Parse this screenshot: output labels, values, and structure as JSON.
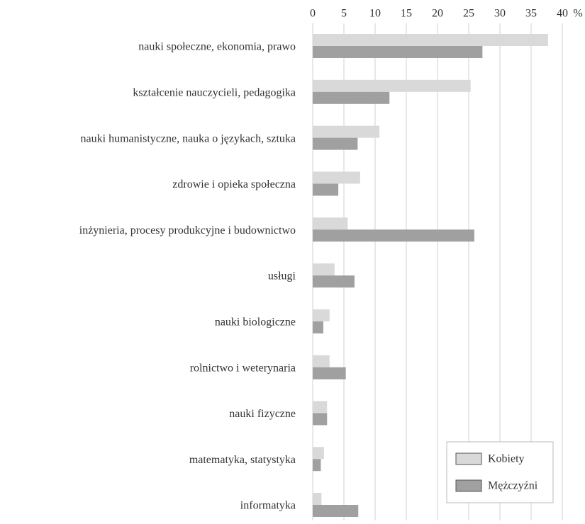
{
  "chart_data": {
    "type": "hbar",
    "x_unit": "%",
    "categories": [
      "nauki społeczne, ekonomia, prawo",
      "kształcenie nauczycieli, pedagogika",
      "nauki humanistyczne, nauka o językach, sztuka",
      "zdrowie i opieka społeczna",
      "inżynieria, procesy produkcyjne i budownictwo",
      "usługi",
      "nauki biologiczne",
      "rolnictwo i weterynaria",
      "nauki fizyczne",
      "matematyka, statystyka",
      "informatyka"
    ],
    "series": [
      {
        "name": "Kobiety",
        "color": "#d9d9d9",
        "values": [
          37.7,
          25.3,
          10.7,
          7.6,
          5.6,
          3.5,
          2.7,
          2.7,
          2.3,
          1.8,
          1.4
        ]
      },
      {
        "name": "Mężczyźni",
        "color": "#a0a0a0",
        "values": [
          27.2,
          12.3,
          7.2,
          4.1,
          25.9,
          6.7,
          1.7,
          5.3,
          2.3,
          1.3,
          7.3
        ]
      }
    ],
    "xlim": [
      0,
      40
    ],
    "xticks": [
      0,
      5,
      10,
      15,
      20,
      25,
      30,
      35,
      40
    ],
    "grid": true,
    "legend": "lower right"
  }
}
